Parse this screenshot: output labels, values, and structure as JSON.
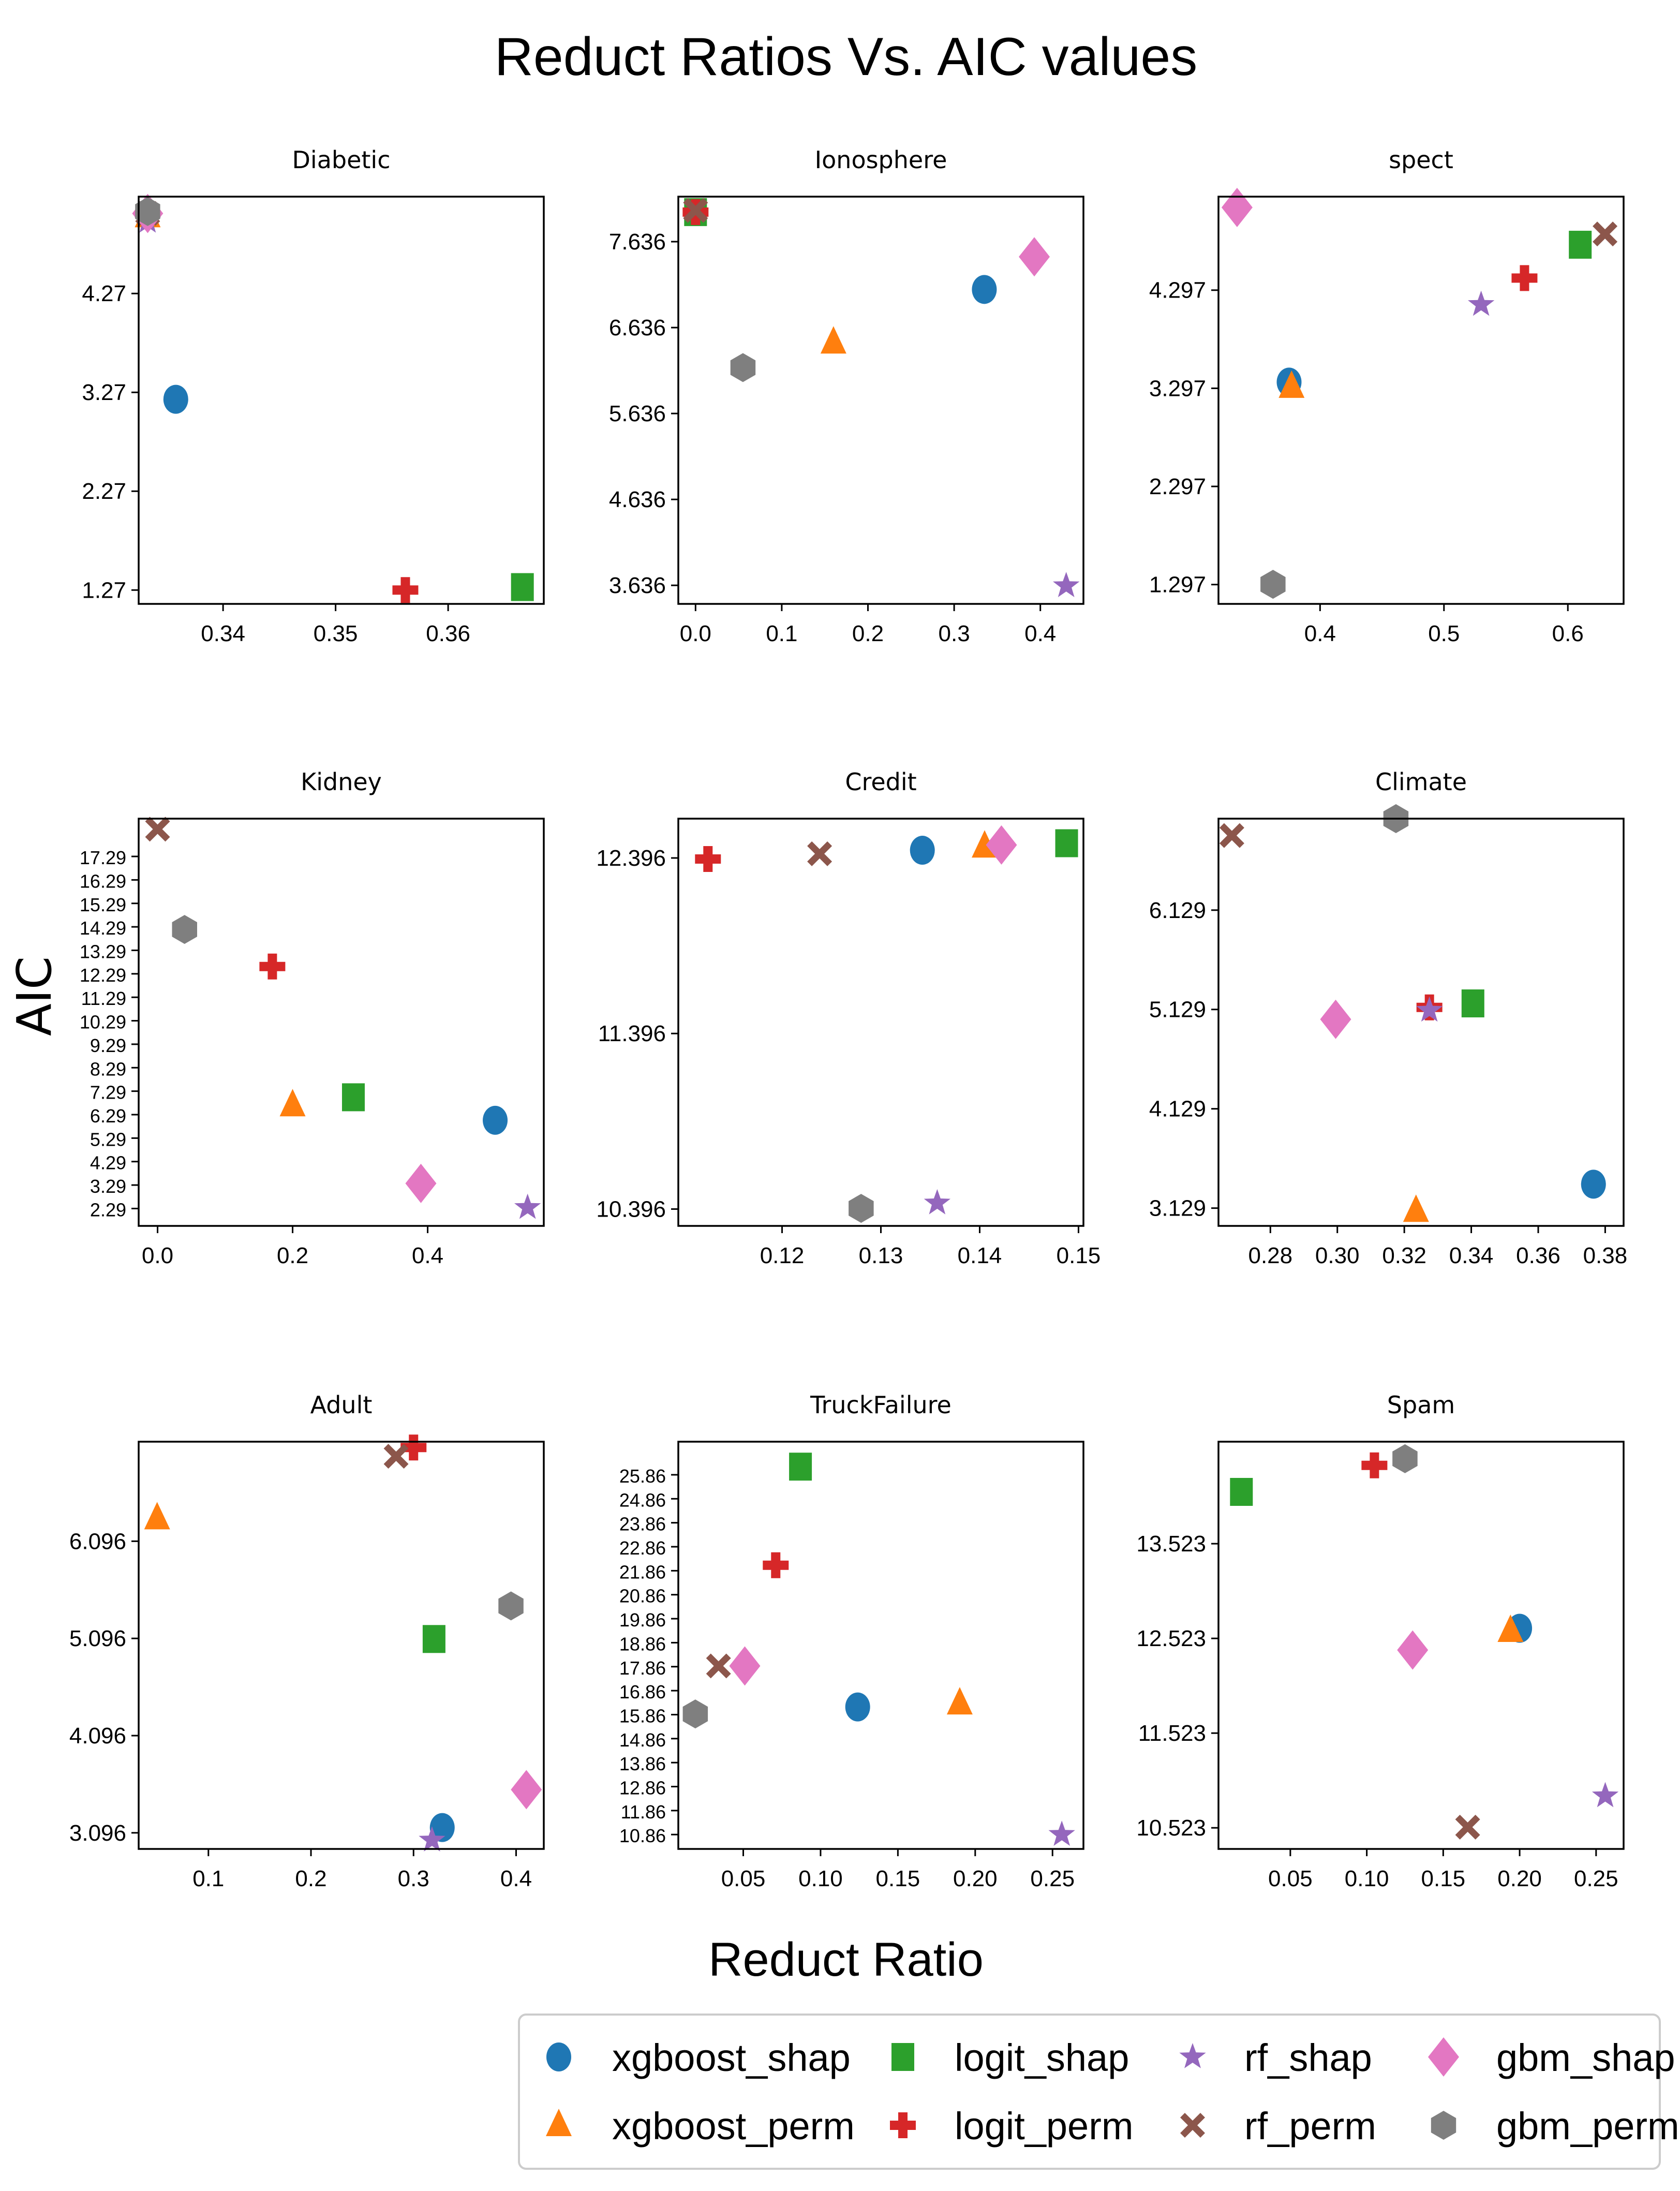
{
  "figure": {
    "title": "Reduct Ratios Vs. AIC values",
    "xlabel": "Reduct Ratio",
    "ylabel": "AIC"
  },
  "series_styles": [
    {
      "name": "xgboost_shap",
      "marker": "circle",
      "color": "#1f77b4"
    },
    {
      "name": "xgboost_perm",
      "marker": "triangle",
      "color": "#ff7f0e"
    },
    {
      "name": "logit_shap",
      "marker": "square",
      "color": "#2ca02c"
    },
    {
      "name": "logit_perm",
      "marker": "plus",
      "color": "#d62728"
    },
    {
      "name": "rf_shap",
      "marker": "star",
      "color": "#9467bd"
    },
    {
      "name": "rf_perm",
      "marker": "x",
      "color": "#8c564b"
    },
    {
      "name": "gbm_shap",
      "marker": "diamond",
      "color": "#e377c2"
    },
    {
      "name": "gbm_perm",
      "marker": "hexagon",
      "color": "#7f7f7f"
    }
  ],
  "legend": {
    "entries": [
      "xgboost_shap",
      "xgboost_perm",
      "logit_shap",
      "logit_perm",
      "rf_shap",
      "rf_perm",
      "gbm_shap",
      "gbm_perm"
    ]
  },
  "chart_data": [
    {
      "type": "scatter",
      "title": "Diabetic",
      "xlim": [
        0.3325,
        0.3685
      ],
      "ylim": [
        1.13,
        5.25
      ],
      "xticks": [
        0.34,
        0.35,
        0.36
      ],
      "xtick_labels": [
        "0.34",
        "0.35",
        "0.36"
      ],
      "yticks": [
        1.27,
        2.27,
        3.27,
        4.27
      ],
      "ytick_labels": [
        "1.27",
        "2.27",
        "3.27",
        "4.27"
      ],
      "points": [
        {
          "series": "xgboost_shap",
          "x": 0.3358,
          "y": 3.2
        },
        {
          "series": "xgboost_perm",
          "x": 0.3333,
          "y": 5.05
        },
        {
          "series": "logit_shap",
          "x": 0.3666,
          "y": 1.3
        },
        {
          "series": "logit_perm",
          "x": 0.3562,
          "y": 1.27
        },
        {
          "series": "rf_shap",
          "x": 0.3333,
          "y": 5.0
        },
        {
          "series": "rf_perm",
          "x": 0.3333,
          "y": 5.08
        },
        {
          "series": "gbm_shap",
          "x": 0.3333,
          "y": 5.08
        },
        {
          "series": "gbm_perm",
          "x": 0.3333,
          "y": 5.1
        }
      ]
    },
    {
      "type": "scatter",
      "title": "Ionosphere",
      "xlim": [
        -0.02,
        0.45
      ],
      "ylim": [
        3.42,
        8.16
      ],
      "xticks": [
        0.0,
        0.1,
        0.2,
        0.3,
        0.4
      ],
      "xtick_labels": [
        "0.0",
        "0.1",
        "0.2",
        "0.3",
        "0.4"
      ],
      "yticks": [
        3.636,
        4.636,
        5.636,
        6.636,
        7.636
      ],
      "ytick_labels": [
        "3.636",
        "4.636",
        "5.636",
        "6.636",
        "7.636"
      ],
      "points": [
        {
          "series": "xgboost_shap",
          "x": 0.335,
          "y": 7.08
        },
        {
          "series": "xgboost_perm",
          "x": 0.16,
          "y": 6.46
        },
        {
          "series": "logit_shap",
          "x": 0.0,
          "y": 7.98
        },
        {
          "series": "logit_perm",
          "x": 0.0,
          "y": 7.98
        },
        {
          "series": "rf_shap",
          "x": 0.43,
          "y": 3.63
        },
        {
          "series": "rf_perm",
          "x": 0.0,
          "y": 8.0
        },
        {
          "series": "gbm_shap",
          "x": 0.393,
          "y": 7.46
        },
        {
          "series": "gbm_perm",
          "x": 0.055,
          "y": 6.17
        }
      ]
    },
    {
      "type": "scatter",
      "title": "spect",
      "xlim": [
        0.318,
        0.645
      ],
      "ylim": [
        1.1,
        5.25
      ],
      "xticks": [
        0.4,
        0.5,
        0.6
      ],
      "xtick_labels": [
        "0.4",
        "0.5",
        "0.6"
      ],
      "yticks": [
        1.297,
        2.297,
        3.297,
        4.297
      ],
      "ytick_labels": [
        "1.297",
        "2.297",
        "3.297",
        "4.297"
      ],
      "points": [
        {
          "series": "xgboost_shap",
          "x": 0.375,
          "y": 3.36
        },
        {
          "series": "xgboost_perm",
          "x": 0.377,
          "y": 3.31
        },
        {
          "series": "logit_shap",
          "x": 0.61,
          "y": 4.76
        },
        {
          "series": "logit_perm",
          "x": 0.565,
          "y": 4.42
        },
        {
          "series": "rf_shap",
          "x": 0.53,
          "y": 4.15
        },
        {
          "series": "rf_perm",
          "x": 0.63,
          "y": 4.87
        },
        {
          "series": "gbm_shap",
          "x": 0.333,
          "y": 5.14
        },
        {
          "series": "gbm_perm",
          "x": 0.362,
          "y": 1.3
        }
      ]
    },
    {
      "type": "scatter",
      "title": "Kidney",
      "xlim": [
        -0.028,
        0.572
      ],
      "ylim": [
        1.55,
        18.9
      ],
      "xticks": [
        0.0,
        0.2,
        0.4
      ],
      "xtick_labels": [
        "0.0",
        "0.2",
        "0.4"
      ],
      "yticks": [
        2.29,
        3.29,
        4.29,
        5.29,
        6.29,
        7.29,
        8.29,
        9.29,
        10.29,
        11.29,
        12.29,
        13.29,
        14.29,
        15.29,
        16.29,
        17.29
      ],
      "ytick_labels": [
        "2.29",
        "3.29",
        "4.29",
        "5.29",
        "6.29",
        "7.29",
        "8.29",
        "9.29",
        "10.29",
        "11.29",
        "12.29",
        "13.29",
        "14.29",
        "15.29",
        "16.29",
        "17.29"
      ],
      "points": [
        {
          "series": "xgboost_shap",
          "x": 0.5,
          "y": 6.05
        },
        {
          "series": "xgboost_perm",
          "x": 0.2,
          "y": 6.68
        },
        {
          "series": "logit_shap",
          "x": 0.29,
          "y": 7.03
        },
        {
          "series": "logit_perm",
          "x": 0.17,
          "y": 12.6
        },
        {
          "series": "rf_shap",
          "x": 0.548,
          "y": 2.33
        },
        {
          "series": "rf_perm",
          "x": 0.0,
          "y": 18.45
        },
        {
          "series": "gbm_shap",
          "x": 0.39,
          "y": 3.36
        },
        {
          "series": "gbm_perm",
          "x": 0.04,
          "y": 14.18
        }
      ]
    },
    {
      "type": "scatter",
      "title": "Credit",
      "xlim": [
        0.1095,
        0.1505
      ],
      "ylim": [
        10.3,
        12.62
      ],
      "xticks": [
        0.12,
        0.13,
        0.14,
        0.15
      ],
      "xtick_labels": [
        "0.12",
        "0.13",
        "0.14",
        "0.15"
      ],
      "yticks": [
        10.396,
        11.396,
        12.396
      ],
      "ytick_labels": [
        "10.396",
        "11.396",
        "12.396"
      ],
      "points": [
        {
          "series": "xgboost_shap",
          "x": 0.1342,
          "y": 12.44
        },
        {
          "series": "xgboost_perm",
          "x": 0.1405,
          "y": 12.46
        },
        {
          "series": "logit_shap",
          "x": 0.1488,
          "y": 12.48
        },
        {
          "series": "logit_perm",
          "x": 0.1125,
          "y": 12.39
        },
        {
          "series": "rf_shap",
          "x": 0.1357,
          "y": 10.43
        },
        {
          "series": "rf_perm",
          "x": 0.1238,
          "y": 12.42
        },
        {
          "series": "gbm_shap",
          "x": 0.1422,
          "y": 12.47
        },
        {
          "series": "gbm_perm",
          "x": 0.128,
          "y": 10.4
        }
      ]
    },
    {
      "type": "scatter",
      "title": "Climate",
      "xlim": [
        0.2645,
        0.3855
      ],
      "ylim": [
        2.95,
        7.05
      ],
      "xticks": [
        0.28,
        0.3,
        0.32,
        0.34,
        0.36,
        0.38
      ],
      "xtick_labels": [
        "0.28",
        "0.30",
        "0.32",
        "0.34",
        "0.36",
        "0.38"
      ],
      "yticks": [
        3.129,
        4.129,
        5.129,
        6.129
      ],
      "ytick_labels": [
        "3.129",
        "4.129",
        "5.129",
        "6.129"
      ],
      "points": [
        {
          "series": "xgboost_shap",
          "x": 0.3765,
          "y": 3.37
        },
        {
          "series": "xgboost_perm",
          "x": 0.3235,
          "y": 3.1
        },
        {
          "series": "logit_shap",
          "x": 0.3405,
          "y": 5.19
        },
        {
          "series": "logit_perm",
          "x": 0.3275,
          "y": 5.15
        },
        {
          "series": "rf_shap",
          "x": 0.3275,
          "y": 5.12
        },
        {
          "series": "rf_perm",
          "x": 0.2685,
          "y": 6.88
        },
        {
          "series": "gbm_shap",
          "x": 0.2995,
          "y": 5.03
        },
        {
          "series": "gbm_perm",
          "x": 0.3175,
          "y": 7.05
        }
      ]
    },
    {
      "type": "scatter",
      "title": "Adult",
      "xlim": [
        0.032,
        0.427
      ],
      "ylim": [
        2.93,
        7.12
      ],
      "xticks": [
        0.1,
        0.2,
        0.3,
        0.4
      ],
      "xtick_labels": [
        "0.1",
        "0.2",
        "0.3",
        "0.4"
      ],
      "yticks": [
        3.096,
        4.096,
        5.096,
        6.096
      ],
      "ytick_labels": [
        "3.096",
        "4.096",
        "5.096",
        "6.096"
      ],
      "points": [
        {
          "series": "xgboost_shap",
          "x": 0.328,
          "y": 3.15
        },
        {
          "series": "xgboost_perm",
          "x": 0.05,
          "y": 6.33
        },
        {
          "series": "logit_shap",
          "x": 0.32,
          "y": 5.09
        },
        {
          "series": "logit_perm",
          "x": 0.3,
          "y": 7.06
        },
        {
          "series": "rf_shap",
          "x": 0.318,
          "y": 3.02
        },
        {
          "series": "rf_perm",
          "x": 0.283,
          "y": 6.97
        },
        {
          "series": "gbm_shap",
          "x": 0.41,
          "y": 3.54
        },
        {
          "series": "gbm_perm",
          "x": 0.395,
          "y": 5.43
        }
      ]
    },
    {
      "type": "scatter",
      "title": "TruckFailure",
      "xlim": [
        0.008,
        0.27
      ],
      "ylim": [
        10.26,
        27.24
      ],
      "xticks": [
        0.05,
        0.1,
        0.15,
        0.2,
        0.25
      ],
      "xtick_labels": [
        "0.05",
        "0.10",
        "0.15",
        "0.20",
        "0.25"
      ],
      "yticks": [
        10.86,
        11.86,
        12.86,
        13.86,
        14.86,
        15.86,
        16.86,
        17.86,
        18.86,
        19.86,
        20.86,
        21.86,
        22.86,
        23.86,
        24.86,
        25.86
      ],
      "ytick_labels": [
        "10.86",
        "11.86",
        "12.86",
        "13.86",
        "14.86",
        "15.86",
        "16.86",
        "17.86",
        "18.86",
        "19.86",
        "20.86",
        "21.86",
        "22.86",
        "23.86",
        "24.86",
        "25.86"
      ],
      "points": [
        {
          "series": "xgboost_shap",
          "x": 0.124,
          "y": 16.18
        },
        {
          "series": "xgboost_perm",
          "x": 0.19,
          "y": 16.32
        },
        {
          "series": "logit_shap",
          "x": 0.087,
          "y": 26.2
        },
        {
          "series": "logit_perm",
          "x": 0.071,
          "y": 22.09
        },
        {
          "series": "rf_shap",
          "x": 0.256,
          "y": 10.86
        },
        {
          "series": "rf_perm",
          "x": 0.034,
          "y": 17.89
        },
        {
          "series": "gbm_shap",
          "x": 0.051,
          "y": 17.89
        },
        {
          "series": "gbm_perm",
          "x": 0.019,
          "y": 15.89
        }
      ]
    },
    {
      "type": "scatter",
      "title": "Spam",
      "xlim": [
        0.003,
        0.268
      ],
      "ylim": [
        10.3,
        14.6
      ],
      "xticks": [
        0.05,
        0.1,
        0.15,
        0.2,
        0.25
      ],
      "xtick_labels": [
        "0.05",
        "0.10",
        "0.15",
        "0.20",
        "0.25"
      ],
      "yticks": [
        10.523,
        11.523,
        12.523,
        13.523
      ],
      "ytick_labels": [
        "10.523",
        "11.523",
        "12.523",
        "13.523"
      ],
      "points": [
        {
          "series": "xgboost_shap",
          "x": 0.2,
          "y": 12.63
        },
        {
          "series": "xgboost_perm",
          "x": 0.194,
          "y": 12.6
        },
        {
          "series": "logit_shap",
          "x": 0.018,
          "y": 14.07
        },
        {
          "series": "logit_perm",
          "x": 0.105,
          "y": 14.35
        },
        {
          "series": "rf_shap",
          "x": 0.256,
          "y": 10.86
        },
        {
          "series": "rf_perm",
          "x": 0.166,
          "y": 10.53
        },
        {
          "series": "gbm_shap",
          "x": 0.13,
          "y": 12.4
        },
        {
          "series": "gbm_perm",
          "x": 0.125,
          "y": 14.42
        }
      ]
    }
  ]
}
